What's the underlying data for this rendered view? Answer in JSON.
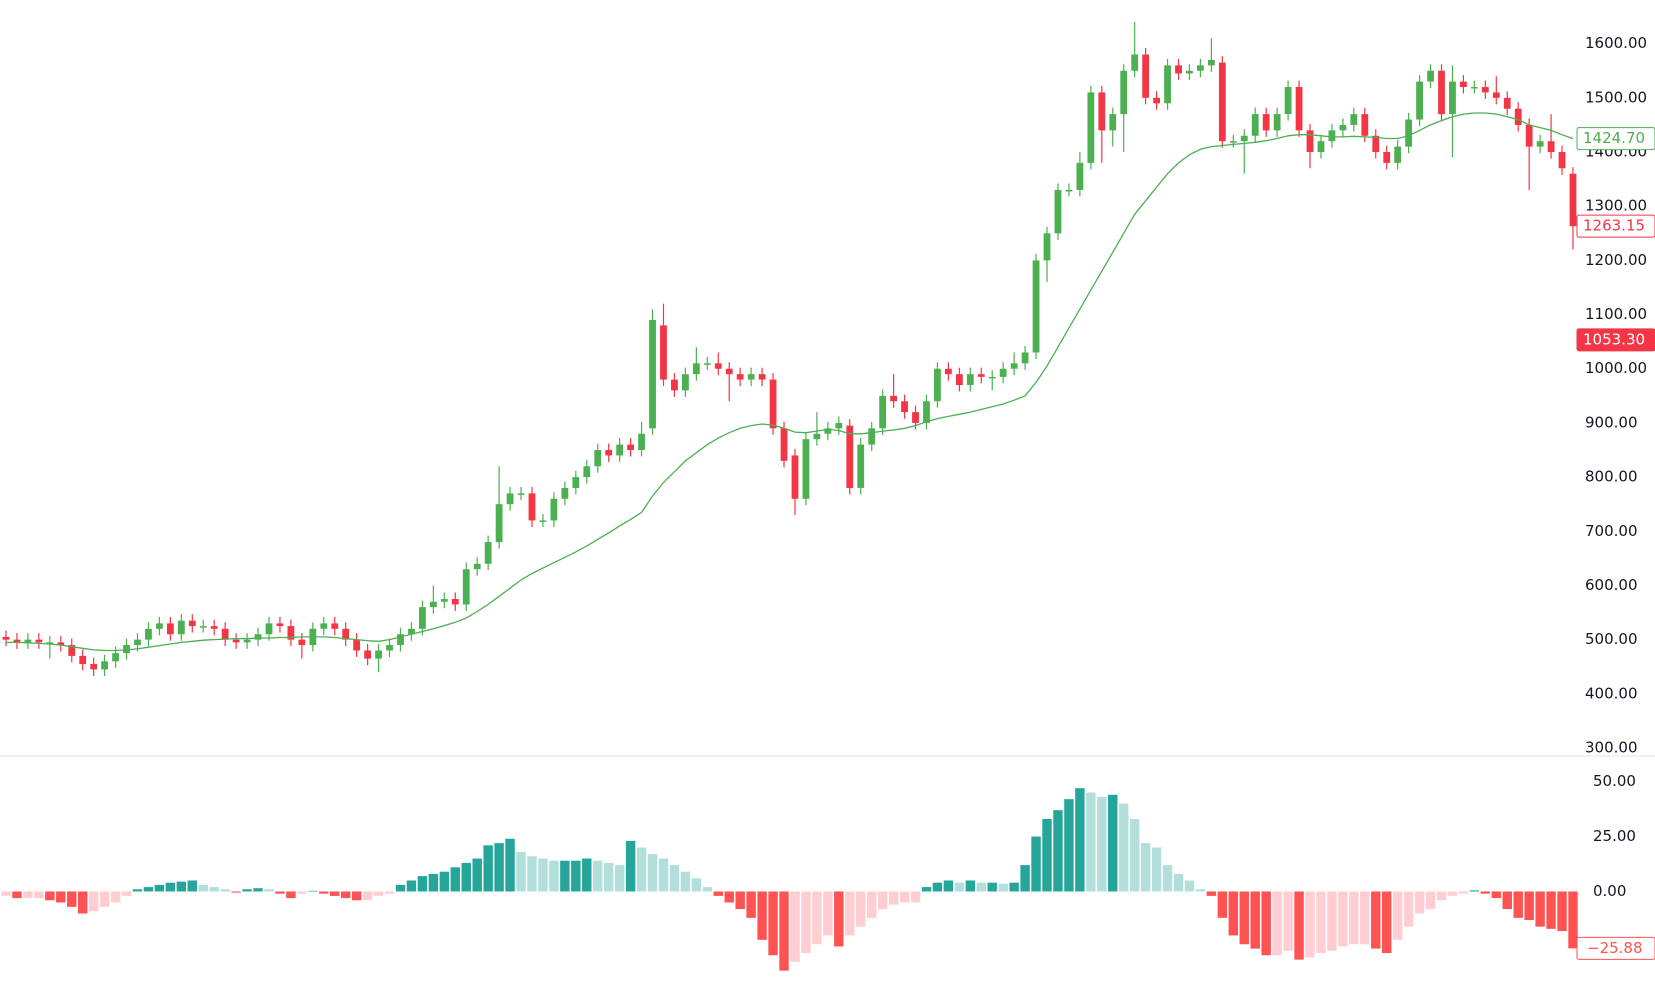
{
  "chart_data": [
    {
      "type": "candlestick",
      "up_color": "#4caf50",
      "down_color": "#f23645",
      "open": [
        505,
        500,
        495,
        500,
        495,
        495,
        490,
        470,
        455,
        445,
        460,
        475,
        490,
        500,
        520,
        530,
        510,
        535,
        525,
        525,
        520,
        500,
        495,
        500,
        510,
        530,
        525,
        500,
        490,
        520,
        530,
        520,
        500,
        480,
        465,
        480,
        490,
        510,
        520,
        560,
        570,
        575,
        565,
        630,
        640,
        680,
        750,
        770,
        770,
        720,
        720,
        760,
        780,
        800,
        820,
        850,
        840,
        860,
        850,
        890,
        1080,
        980,
        960,
        990,
        1010,
        1010,
        1000,
        990,
        980,
        990,
        980,
        890,
        840,
        760,
        870,
        880,
        890,
        895,
        780,
        860,
        890,
        950,
        940,
        920,
        900,
        940,
        1000,
        990,
        970,
        990,
        985,
        985,
        1000,
        1010,
        1030,
        1200,
        1250,
        1330,
        1330,
        1380,
        1510,
        1440,
        1470,
        1550,
        1580,
        1500,
        1490,
        1560,
        1545,
        1550,
        1560,
        1565,
        1420,
        1420,
        1430,
        1470,
        1440,
        1470,
        1520,
        1440,
        1400,
        1420,
        1440,
        1450,
        1470,
        1430,
        1400,
        1380,
        1410,
        1460,
        1530,
        1550,
        1470,
        1530,
        1520,
        1520,
        1510,
        1500,
        1480,
        1450,
        1410,
        1420,
        1400,
        1360
      ],
      "high": [
        517,
        512,
        512,
        512,
        507,
        507,
        502,
        482,
        467,
        472,
        487,
        502,
        512,
        532,
        542,
        542,
        547,
        547,
        537,
        537,
        532,
        512,
        512,
        522,
        542,
        542,
        537,
        512,
        532,
        542,
        542,
        532,
        512,
        492,
        492,
        502,
        522,
        532,
        572,
        600,
        587,
        587,
        642,
        652,
        692,
        820,
        782,
        782,
        782,
        732,
        772,
        792,
        812,
        832,
        862,
        862,
        872,
        872,
        902,
        1110,
        1120,
        992,
        1002,
        1040,
        1022,
        1030,
        1012,
        1002,
        1002,
        1002,
        992,
        902,
        852,
        882,
        920,
        902,
        912,
        907,
        872,
        902,
        962,
        990,
        952,
        932,
        952,
        1012,
        1012,
        1002,
        1002,
        1002,
        997,
        1012,
        1030,
        1042,
        1212,
        1262,
        1342,
        1342,
        1400,
        1522,
        1522,
        1482,
        1562,
        1640,
        1592,
        1512,
        1572,
        1572,
        1562,
        1572,
        1610,
        1577,
        1432,
        1442,
        1482,
        1482,
        1482,
        1532,
        1532,
        1452,
        1432,
        1452,
        1462,
        1482,
        1482,
        1442,
        1412,
        1422,
        1472,
        1542,
        1562,
        1562,
        1560,
        1542,
        1532,
        1532,
        1540,
        1512,
        1492,
        1462,
        1432,
        1470,
        1412,
        1372
      ],
      "low": [
        488,
        483,
        483,
        483,
        465,
        478,
        458,
        443,
        433,
        433,
        448,
        463,
        478,
        488,
        508,
        498,
        498,
        513,
        513,
        508,
        488,
        483,
        483,
        488,
        498,
        513,
        488,
        465,
        478,
        508,
        508,
        488,
        468,
        453,
        440,
        468,
        478,
        498,
        508,
        548,
        558,
        553,
        553,
        618,
        628,
        668,
        738,
        758,
        708,
        708,
        708,
        748,
        768,
        788,
        808,
        828,
        828,
        838,
        838,
        878,
        968,
        948,
        948,
        978,
        998,
        988,
        940,
        968,
        968,
        968,
        878,
        818,
        730,
        748,
        858,
        868,
        878,
        768,
        768,
        848,
        878,
        928,
        908,
        888,
        888,
        928,
        978,
        958,
        958,
        973,
        960,
        973,
        988,
        998,
        1018,
        1160,
        1238,
        1318,
        1318,
        1368,
        1380,
        1410,
        1400,
        1538,
        1488,
        1478,
        1478,
        1533,
        1533,
        1538,
        1548,
        1408,
        1408,
        1360,
        1418,
        1428,
        1428,
        1458,
        1428,
        1370,
        1388,
        1408,
        1428,
        1438,
        1418,
        1388,
        1368,
        1368,
        1398,
        1448,
        1518,
        1458,
        1390,
        1508,
        1508,
        1498,
        1488,
        1468,
        1438,
        1330,
        1398,
        1388,
        1358,
        1220
      ],
      "close": [
        500,
        495,
        500,
        495,
        495,
        490,
        470,
        455,
        445,
        460,
        475,
        490,
        500,
        520,
        530,
        510,
        535,
        525,
        525,
        520,
        500,
        495,
        500,
        510,
        530,
        525,
        500,
        490,
        520,
        530,
        520,
        500,
        480,
        465,
        480,
        490,
        510,
        520,
        560,
        570,
        575,
        565,
        630,
        640,
        680,
        750,
        770,
        770,
        720,
        720,
        760,
        780,
        800,
        820,
        850,
        840,
        860,
        850,
        880,
        1090,
        980,
        960,
        990,
        1010,
        1010,
        1000,
        990,
        980,
        990,
        980,
        890,
        830,
        760,
        870,
        880,
        890,
        900,
        780,
        860,
        890,
        950,
        940,
        920,
        900,
        940,
        1000,
        990,
        970,
        990,
        985,
        985,
        1000,
        1010,
        1030,
        1200,
        1250,
        1330,
        1330,
        1380,
        1510,
        1440,
        1470,
        1550,
        1580,
        1500,
        1490,
        1560,
        1545,
        1550,
        1560,
        1570,
        1420,
        1420,
        1430,
        1470,
        1440,
        1470,
        1520,
        1440,
        1400,
        1420,
        1440,
        1450,
        1470,
        1430,
        1400,
        1380,
        1410,
        1460,
        1530,
        1550,
        1470,
        1530,
        1520,
        1520,
        1510,
        1500,
        1480,
        1450,
        1410,
        1420,
        1400,
        1370,
        1263.15
      ],
      "ma": {
        "color": "#4caf50",
        "values": [
          495,
          495,
          494,
          493,
          492,
          490,
          487,
          484,
          481,
          480,
          480,
          481,
          483,
          486,
          489,
          492,
          495,
          497,
          499,
          500,
          501,
          502,
          502,
          503,
          503,
          504,
          504,
          505,
          505,
          505,
          504,
          502,
          500,
          498,
          497,
          500,
          505,
          510,
          515,
          520,
          526,
          532,
          540,
          552,
          565,
          580,
          595,
          610,
          622,
          632,
          642,
          652,
          662,
          673,
          685,
          697,
          710,
          722,
          735,
          765,
          790,
          810,
          830,
          845,
          860,
          872,
          882,
          890,
          895,
          898,
          896,
          890,
          883,
          882,
          885,
          888,
          886,
          880,
          880,
          882,
          885,
          887,
          890,
          895,
          902,
          908,
          912,
          916,
          920,
          925,
          930,
          935,
          942,
          950,
          975,
          1005,
          1040,
          1075,
          1110,
          1145,
          1180,
          1215,
          1250,
          1285,
          1310,
          1335,
          1360,
          1380,
          1395,
          1405,
          1410,
          1412,
          1414,
          1416,
          1418,
          1421,
          1425,
          1430,
          1432,
          1432,
          1430,
          1428,
          1428,
          1429,
          1428,
          1427,
          1425,
          1425,
          1430,
          1440,
          1450,
          1458,
          1465,
          1470,
          1472,
          1472,
          1470,
          1465,
          1460,
          1450,
          1445,
          1440,
          1432,
          1424.7
        ]
      },
      "ylim": [
        300,
        1640
      ],
      "yticks": [
        {
          "value": 300,
          "label": "300.00"
        },
        {
          "value": 400,
          "label": "400.00"
        },
        {
          "value": 500,
          "label": "500.00"
        },
        {
          "value": 600,
          "label": "600.00"
        },
        {
          "value": 700,
          "label": "700.00"
        },
        {
          "value": 800,
          "label": "800.00"
        },
        {
          "value": 900,
          "label": "900.00"
        },
        {
          "value": 1000,
          "label": "1000.00"
        },
        {
          "value": 1100,
          "label": "1100.00"
        },
        {
          "value": 1200,
          "label": "1200.00"
        },
        {
          "value": 1300,
          "label": "1300.00"
        },
        {
          "value": 1400,
          "label": "1400.00"
        },
        {
          "value": 1500,
          "label": "1500.00"
        },
        {
          "value": 1600,
          "label": "1600.00"
        }
      ],
      "price_labels": [
        {
          "value": 1424.7,
          "label": "1424.70",
          "color": "#4caf50",
          "filled": false
        },
        {
          "value": 1263.15,
          "label": "1263.15",
          "color": "#f23645",
          "filled": false
        },
        {
          "value": 1053.3,
          "label": "1053.30",
          "color": "#f23645",
          "filled": true
        }
      ]
    },
    {
      "type": "histogram_oscillator",
      "colors": {
        "pos_up": "#26a69a",
        "pos_down": "#b2dfdb",
        "neg_down": "#ff5252",
        "neg_up": "#ffcdd2"
      },
      "values": [
        -2,
        -3,
        -3,
        -3,
        -4,
        -5,
        -7,
        -10,
        -9,
        -7,
        -5,
        -2,
        1,
        2,
        3,
        4,
        4.5,
        5,
        3,
        2,
        1,
        -0.5,
        1,
        1.5,
        1,
        -1,
        -3,
        -1,
        0.3,
        -1,
        -2,
        -3,
        -4,
        -4,
        -2,
        -1,
        3,
        5,
        7,
        8,
        9,
        11,
        13,
        15,
        21,
        22,
        24,
        18,
        16,
        15,
        14,
        14,
        14,
        15,
        14,
        13,
        12,
        23,
        20,
        17,
        15,
        12,
        9,
        6,
        2,
        -2,
        -5,
        -8,
        -12,
        -22,
        -29,
        -36,
        -32,
        -28,
        -24,
        -20,
        -25,
        -20,
        -16,
        -12,
        -8,
        -6,
        -5,
        -5,
        2,
        4,
        5,
        4,
        5,
        4,
        4,
        3.5,
        4,
        12,
        25,
        33,
        37,
        42,
        47,
        45,
        43,
        44,
        40,
        33,
        22,
        20,
        12,
        8,
        5,
        1,
        -2,
        -12,
        -20,
        -24,
        -26,
        -29,
        -29,
        -27,
        -31,
        -30,
        -28,
        -27,
        -25,
        -24,
        -24,
        -26,
        -28,
        -22,
        -16,
        -10,
        -8,
        -4,
        -2,
        -1,
        0.5,
        -1,
        -3,
        -8,
        -12,
        -13,
        -16,
        -17,
        -18,
        -25.88
      ],
      "value_labels": {
        "143": "−25.88"
      },
      "ylim": [
        -38,
        58
      ],
      "yticks": [
        {
          "value": 0,
          "label": "0.00"
        },
        {
          "value": 25,
          "label": "25.00"
        },
        {
          "value": 50,
          "label": "50.00"
        }
      ]
    }
  ]
}
